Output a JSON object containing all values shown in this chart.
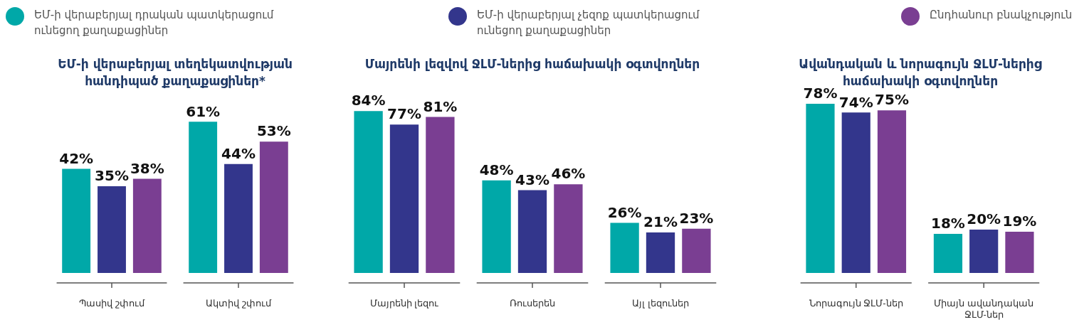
{
  "chart_data": [
    {
      "type": "bar",
      "title": "ԵՄ-ի վերաբերյալ տեղեկատվության հանդիպած քաղաքացիներ*",
      "categories": [
        "Պասիվ շփում",
        "Ակտիվ շփում"
      ],
      "series": [
        {
          "name": "ԵՄ-ի վերաբերյալ դրական պատկերացում ունեցող քաղաքացիներ",
          "color": "#00a8a8",
          "values": [
            42,
            61
          ],
          "value_labels": [
            "42%",
            "61%"
          ]
        },
        {
          "name": "ԵՄ-ի վերաբերյալ չեզոք պատկերացում ունեցող քաղաքացիներ",
          "color": "#33368c",
          "values": [
            35,
            44
          ],
          "value_labels": [
            "35%",
            "44%"
          ]
        },
        {
          "name": "Ընդհանուր բնակչություն",
          "color": "#7a3e92",
          "values": [
            38,
            53
          ],
          "value_labels": [
            "38%",
            "53%"
          ]
        }
      ],
      "tick_labels": "x",
      "legend": "top",
      "grid": false
    },
    {
      "type": "bar",
      "title": "Մայրենի լեզվով ՋԼՄ-ներից հաճախակի օգտվողներ",
      "categories": [
        "Մայրենի լեզու",
        "Ռուսերեն",
        "Այլ լեզուներ"
      ],
      "series": [
        {
          "color": "#00a8a8",
          "values": [
            84,
            48,
            26
          ],
          "value_labels": [
            "84%",
            "48%",
            "26%"
          ]
        },
        {
          "color": "#33368c",
          "values": [
            77,
            43,
            21
          ],
          "value_labels": [
            "77%",
            "43%",
            "21%"
          ]
        },
        {
          "color": "#7a3e92",
          "values": [
            81,
            46,
            23
          ],
          "value_labels": [
            "81%",
            "46%",
            "23%"
          ]
        }
      ],
      "tick_labels": "x",
      "grid": false
    },
    {
      "type": "bar",
      "title": "Ավանդական և նորագույն ՋԼՄ-ներից հաճախակի օգտվողներ",
      "categories": [
        "Նորագույն ՋԼՄ-ներ",
        "Միայն ավանդական ՋԼՄ-ներ"
      ],
      "series": [
        {
          "color": "#00a8a8",
          "values": [
            78,
            18
          ],
          "value_labels": [
            "78%",
            "18%"
          ]
        },
        {
          "color": "#33368c",
          "values": [
            74,
            20
          ],
          "value_labels": [
            "74%",
            "20%"
          ]
        },
        {
          "color": "#7a3e92",
          "values": [
            75,
            19
          ],
          "value_labels": [
            "75%",
            "19%"
          ]
        }
      ],
      "tick_labels": "x",
      "grid": false
    }
  ]
}
